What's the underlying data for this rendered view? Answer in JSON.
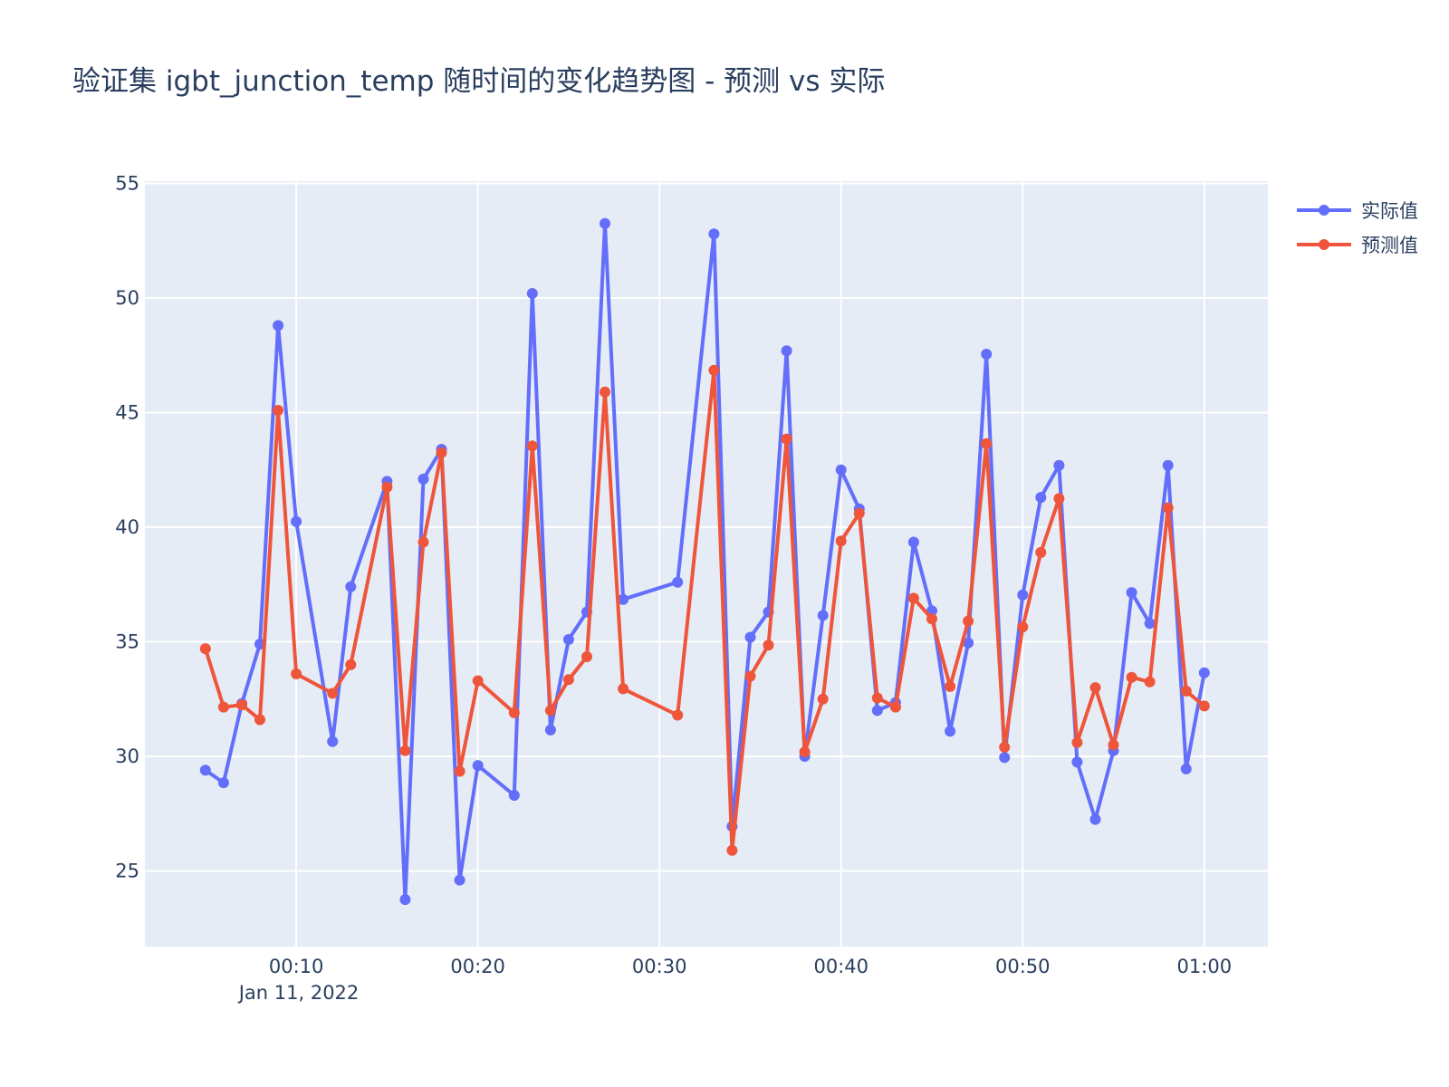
{
  "colors": {
    "plot_bg": "#e5ecf6",
    "grid": "#ffffff",
    "text": "#2a3f5f",
    "actual": "#636efa",
    "predicted": "#ef553b"
  },
  "chart_data": {
    "type": "line",
    "title": "验证集 igbt_junction_temp 随时间的变化趋势图 - 预测 vs 实际",
    "xlabel": "",
    "ylabel": "",
    "x_axis": {
      "type": "datetime",
      "range": [
        "2022-01-11 00:01:40",
        "2022-01-11 01:03:30"
      ],
      "ticks": [
        "00:10",
        "00:20",
        "00:30",
        "00:40",
        "00:50",
        "01:00"
      ],
      "tick_minutes": [
        10,
        20,
        30,
        40,
        50,
        60
      ],
      "date_label": "Jan 11, 2022"
    },
    "y_axis": {
      "range": [
        21.7,
        55.1
      ],
      "ticks": [
        25,
        30,
        35,
        40,
        45,
        50,
        55
      ]
    },
    "grid": true,
    "legend_position": "top-right",
    "series": [
      {
        "name": "实际值",
        "color": "#636efa",
        "points": [
          [
            "2022-01-11 00:05",
            29.4
          ],
          [
            "2022-01-11 00:06",
            28.85
          ],
          [
            "2022-01-11 00:07",
            32.3
          ],
          [
            "2022-01-11 00:08",
            34.9
          ],
          [
            "2022-01-11 00:09",
            48.8
          ],
          [
            "2022-01-11 00:10",
            40.25
          ],
          [
            "2022-01-11 00:12",
            30.65
          ],
          [
            "2022-01-11 00:13",
            37.4
          ],
          [
            "2022-01-11 00:15",
            42.0
          ],
          [
            "2022-01-11 00:16",
            23.75
          ],
          [
            "2022-01-11 00:17",
            42.1
          ],
          [
            "2022-01-11 00:18",
            43.4
          ],
          [
            "2022-01-11 00:19",
            24.6
          ],
          [
            "2022-01-11 00:20",
            29.6
          ],
          [
            "2022-01-11 00:22",
            28.3
          ],
          [
            "2022-01-11 00:23",
            50.2
          ],
          [
            "2022-01-11 00:24",
            31.15
          ],
          [
            "2022-01-11 00:25",
            35.1
          ],
          [
            "2022-01-11 00:26",
            36.3
          ],
          [
            "2022-01-11 00:27",
            53.25
          ],
          [
            "2022-01-11 00:28",
            36.85
          ],
          [
            "2022-01-11 00:31",
            37.6
          ],
          [
            "2022-01-11 00:33",
            52.8
          ],
          [
            "2022-01-11 00:34",
            26.95
          ],
          [
            "2022-01-11 00:35",
            35.2
          ],
          [
            "2022-01-11 00:36",
            36.3
          ],
          [
            "2022-01-11 00:37",
            47.7
          ],
          [
            "2022-01-11 00:38",
            30.0
          ],
          [
            "2022-01-11 00:39",
            36.15
          ],
          [
            "2022-01-11 00:40",
            42.5
          ],
          [
            "2022-01-11 00:41",
            40.8
          ],
          [
            "2022-01-11 00:42",
            32.0
          ],
          [
            "2022-01-11 00:43",
            32.35
          ],
          [
            "2022-01-11 00:44",
            39.35
          ],
          [
            "2022-01-11 00:45",
            36.35
          ],
          [
            "2022-01-11 00:46",
            31.1
          ],
          [
            "2022-01-11 00:47",
            34.95
          ],
          [
            "2022-01-11 00:48",
            47.55
          ],
          [
            "2022-01-11 00:49",
            29.95
          ],
          [
            "2022-01-11 00:50",
            37.05
          ],
          [
            "2022-01-11 00:51",
            41.3
          ],
          [
            "2022-01-11 00:52",
            42.7
          ],
          [
            "2022-01-11 00:53",
            29.75
          ],
          [
            "2022-01-11 00:54",
            27.25
          ],
          [
            "2022-01-11 00:55",
            30.25
          ],
          [
            "2022-01-11 00:56",
            37.15
          ],
          [
            "2022-01-11 00:57",
            35.8
          ],
          [
            "2022-01-11 00:58",
            42.7
          ],
          [
            "2022-01-11 00:59",
            29.45
          ],
          [
            "2022-01-11 01:00",
            33.65
          ]
        ]
      },
      {
        "name": "预测值",
        "color": "#ef553b",
        "points": [
          [
            "2022-01-11 00:05",
            34.7
          ],
          [
            "2022-01-11 00:06",
            32.15
          ],
          [
            "2022-01-11 00:07",
            32.25
          ],
          [
            "2022-01-11 00:08",
            31.6
          ],
          [
            "2022-01-11 00:09",
            45.1
          ],
          [
            "2022-01-11 00:10",
            33.6
          ],
          [
            "2022-01-11 00:12",
            32.75
          ],
          [
            "2022-01-11 00:13",
            34.0
          ],
          [
            "2022-01-11 00:15",
            41.75
          ],
          [
            "2022-01-11 00:16",
            30.25
          ],
          [
            "2022-01-11 00:17",
            39.35
          ],
          [
            "2022-01-11 00:18",
            43.25
          ],
          [
            "2022-01-11 00:19",
            29.35
          ],
          [
            "2022-01-11 00:20",
            33.3
          ],
          [
            "2022-01-11 00:22",
            31.9
          ],
          [
            "2022-01-11 00:23",
            43.55
          ],
          [
            "2022-01-11 00:24",
            32.0
          ],
          [
            "2022-01-11 00:25",
            33.35
          ],
          [
            "2022-01-11 00:26",
            34.35
          ],
          [
            "2022-01-11 00:27",
            45.9
          ],
          [
            "2022-01-11 00:28",
            32.95
          ],
          [
            "2022-01-11 00:31",
            31.8
          ],
          [
            "2022-01-11 00:33",
            46.85
          ],
          [
            "2022-01-11 00:34",
            25.9
          ],
          [
            "2022-01-11 00:35",
            33.5
          ],
          [
            "2022-01-11 00:36",
            34.85
          ],
          [
            "2022-01-11 00:37",
            43.85
          ],
          [
            "2022-01-11 00:38",
            30.2
          ],
          [
            "2022-01-11 00:39",
            32.5
          ],
          [
            "2022-01-11 00:40",
            39.4
          ],
          [
            "2022-01-11 00:41",
            40.6
          ],
          [
            "2022-01-11 00:42",
            32.55
          ],
          [
            "2022-01-11 00:43",
            32.15
          ],
          [
            "2022-01-11 00:44",
            36.9
          ],
          [
            "2022-01-11 00:45",
            36.0
          ],
          [
            "2022-01-11 00:46",
            33.05
          ],
          [
            "2022-01-11 00:47",
            35.9
          ],
          [
            "2022-01-11 00:48",
            43.65
          ],
          [
            "2022-01-11 00:49",
            30.4
          ],
          [
            "2022-01-11 00:50",
            35.65
          ],
          [
            "2022-01-11 00:51",
            38.9
          ],
          [
            "2022-01-11 00:52",
            41.25
          ],
          [
            "2022-01-11 00:53",
            30.6
          ],
          [
            "2022-01-11 00:54",
            33.0
          ],
          [
            "2022-01-11 00:55",
            30.5
          ],
          [
            "2022-01-11 00:56",
            33.45
          ],
          [
            "2022-01-11 00:57",
            33.25
          ],
          [
            "2022-01-11 00:58",
            40.85
          ],
          [
            "2022-01-11 00:59",
            32.85
          ],
          [
            "2022-01-11 01:00",
            32.2
          ]
        ]
      }
    ]
  }
}
